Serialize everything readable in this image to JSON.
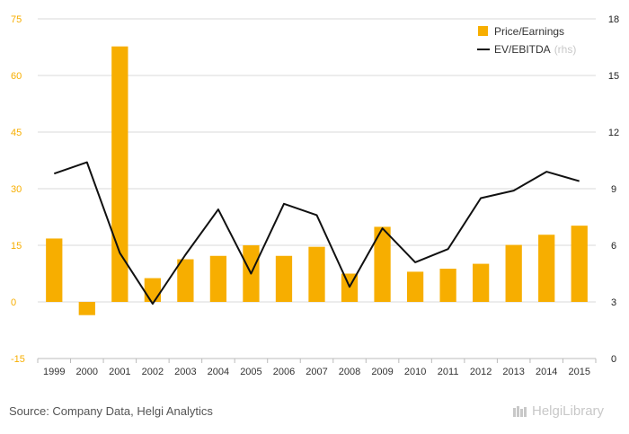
{
  "chart_data": {
    "type": "bar",
    "categories": [
      "1999",
      "2000",
      "2001",
      "2002",
      "2003",
      "2004",
      "2005",
      "2006",
      "2007",
      "2008",
      "2009",
      "2010",
      "2011",
      "2012",
      "2013",
      "2014",
      "2015"
    ],
    "series": [
      {
        "name": "Price/Earnings",
        "type": "bar",
        "axis": "left",
        "values": [
          16.8,
          -3.5,
          67.7,
          6.3,
          11.3,
          12.2,
          15.0,
          12.2,
          14.6,
          7.5,
          19.9,
          8.0,
          8.8,
          10.1,
          15.1,
          17.8,
          20.2
        ]
      },
      {
        "name": "EV/EBITDA",
        "type": "line",
        "axis": "right",
        "values": [
          9.8,
          10.4,
          5.6,
          2.9,
          5.5,
          7.9,
          4.5,
          8.2,
          7.6,
          3.8,
          6.9,
          5.1,
          5.8,
          8.5,
          8.9,
          9.9,
          9.4
        ]
      }
    ],
    "left_axis": {
      "ticks": [
        "75",
        "60",
        "45",
        "30",
        "15",
        "0",
        "-15"
      ],
      "ylim": [
        -15,
        75
      ]
    },
    "right_axis": {
      "ticks": [
        "18",
        "15",
        "12",
        "9",
        "6",
        "3",
        "0"
      ],
      "ylim": [
        0,
        18
      ]
    },
    "legend": {
      "position": "top-right",
      "items": [
        {
          "label": "Price/Earnings",
          "note": ""
        },
        {
          "label": "EV/EBITDA",
          "note": "(rhs)"
        }
      ]
    },
    "colors": {
      "bar": "#f7ae00",
      "line": "#111111",
      "left_tick": "#f7ae00",
      "right_tick": "#222222",
      "grid": "#d9d9d9"
    },
    "grid": true
  },
  "footer": {
    "source": "Source: Company Data, Helgi Analytics",
    "brand": "HelgiLibrary"
  }
}
